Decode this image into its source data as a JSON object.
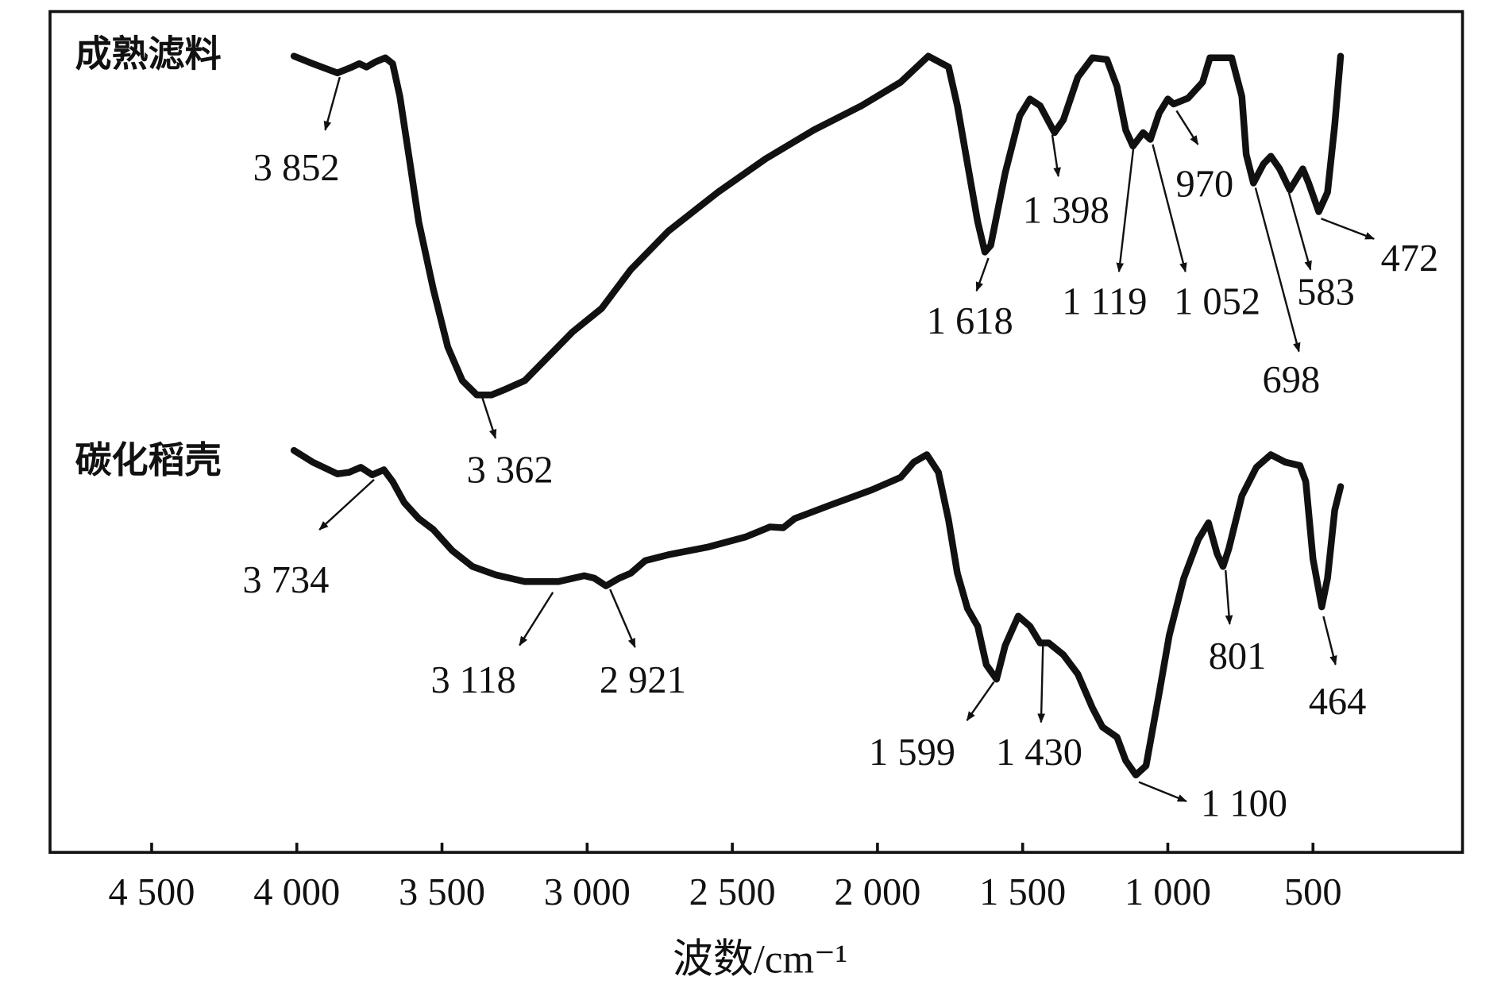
{
  "chart_data": {
    "type": "line",
    "xlabel": "波数/cm⁻¹",
    "xlim": [
      4850,
      -15
    ],
    "xticks": [
      {
        "value": 4500,
        "label": "4 500"
      },
      {
        "value": 4000,
        "label": "4 000"
      },
      {
        "value": 3500,
        "label": "3 500"
      },
      {
        "value": 3000,
        "label": "3 000"
      },
      {
        "value": 2500,
        "label": "2 500"
      },
      {
        "value": 2000,
        "label": "2 000"
      },
      {
        "value": 1500,
        "label": "1 500"
      },
      {
        "value": 1000,
        "label": "1 000"
      },
      500
    ],
    "ylim": [
      0,
      100
    ],
    "series": [
      {
        "name": "成熟滤料",
        "color": "#111111",
        "x": [
          4010,
          3945,
          3860,
          3810,
          3785,
          3760,
          3730,
          3695,
          3670,
          3645,
          3610,
          3580,
          3530,
          3480,
          3430,
          3380,
          3330,
          3280,
          3215,
          3150,
          3050,
          2950,
          2850,
          2720,
          2550,
          2385,
          2220,
          2055,
          1920,
          1825,
          1755,
          1725,
          1690,
          1655,
          1630,
          1610,
          1560,
          1510,
          1475,
          1440,
          1390,
          1360,
          1310,
          1260,
          1210,
          1175,
          1145,
          1120,
          1085,
          1060,
          1030,
          1000,
          980,
          930,
          880,
          855,
          780,
          745,
          730,
          705,
          670,
          645,
          615,
          580,
          535,
          515,
          480,
          450,
          425,
          405
        ],
        "values": [
          94.7,
          93.8,
          92.7,
          93.4,
          93.8,
          93.4,
          94.0,
          94.5,
          93.8,
          89.9,
          81.9,
          75.0,
          67.0,
          60.1,
          56.1,
          54.4,
          54.4,
          55.1,
          56.1,
          58.4,
          61.9,
          64.7,
          69.3,
          73.9,
          78.5,
          82.5,
          85.9,
          88.8,
          91.6,
          94.7,
          93.4,
          88.8,
          81.9,
          75.0,
          71.4,
          72.2,
          80.8,
          87.6,
          89.6,
          88.8,
          85.6,
          87.1,
          92.2,
          94.5,
          94.3,
          91.1,
          85.9,
          84.0,
          85.6,
          84.8,
          87.9,
          89.6,
          89.0,
          89.7,
          91.6,
          94.5,
          94.5,
          89.9,
          83.0,
          79.6,
          81.9,
          82.8,
          81.3,
          78.8,
          81.3,
          79.6,
          76.2,
          78.5,
          86.5,
          94.7
        ]
      },
      {
        "name": "碳化稻壳",
        "color": "#111111",
        "x": [
          4010,
          3945,
          3860,
          3820,
          3780,
          3740,
          3700,
          3670,
          3630,
          3580,
          3530,
          3465,
          3395,
          3315,
          3215,
          3100,
          3010,
          2975,
          2935,
          2890,
          2850,
          2800,
          2720,
          2585,
          2455,
          2370,
          2325,
          2285,
          2155,
          2020,
          1920,
          1875,
          1830,
          1790,
          1755,
          1725,
          1690,
          1655,
          1625,
          1590,
          1560,
          1515,
          1475,
          1440,
          1410,
          1360,
          1310,
          1260,
          1225,
          1175,
          1145,
          1110,
          1075,
          1030,
          995,
          945,
          895,
          860,
          830,
          810,
          790,
          745,
          695,
          645,
          595,
          545,
          525,
          500,
          470,
          450,
          425,
          405
        ],
        "values": [
          47.8,
          46.4,
          45.0,
          45.2,
          45.8,
          44.9,
          45.5,
          44.1,
          41.6,
          39.7,
          38.4,
          35.9,
          34.0,
          33.0,
          32.2,
          32.2,
          32.9,
          32.6,
          31.7,
          32.6,
          33.2,
          34.7,
          35.4,
          36.3,
          37.5,
          38.7,
          38.6,
          39.7,
          41.4,
          43.1,
          44.6,
          46.4,
          47.3,
          45.2,
          39.5,
          33.2,
          29.0,
          26.9,
          22.3,
          20.6,
          24.6,
          28.1,
          26.9,
          24.9,
          24.9,
          23.5,
          21.2,
          17.2,
          14.9,
          13.7,
          10.9,
          9.2,
          10.3,
          18.9,
          25.8,
          32.6,
          37.2,
          39.2,
          35.5,
          34.0,
          36.1,
          42.4,
          45.8,
          47.3,
          46.4,
          46.0,
          44.1,
          34.9,
          29.2,
          32.6,
          40.7,
          43.5
        ]
      }
    ],
    "annotations": [
      {
        "text": "3 852",
        "x": 3852
      },
      {
        "text": "3 362",
        "x": 3362
      },
      {
        "text": "1 618",
        "x": 1618
      },
      {
        "text": "1 398",
        "x": 1398
      },
      {
        "text": "1 119",
        "x": 1119
      },
      {
        "text": "1 052",
        "x": 1052
      },
      {
        "text": "970",
        "x": 970
      },
      {
        "text": "698",
        "x": 698
      },
      {
        "text": "583",
        "x": 583
      },
      {
        "text": "472",
        "x": 472
      },
      {
        "text": "3 734",
        "x": 3734
      },
      {
        "text": "3 118",
        "x": 3118
      },
      {
        "text": "2 921",
        "x": 2921
      },
      {
        "text": "1 599",
        "x": 1599
      },
      {
        "text": "1 430",
        "x": 1430
      },
      {
        "text": "1 100",
        "x": 1100
      },
      {
        "text": "801",
        "x": 801
      },
      {
        "text": "464",
        "x": 464
      }
    ]
  }
}
